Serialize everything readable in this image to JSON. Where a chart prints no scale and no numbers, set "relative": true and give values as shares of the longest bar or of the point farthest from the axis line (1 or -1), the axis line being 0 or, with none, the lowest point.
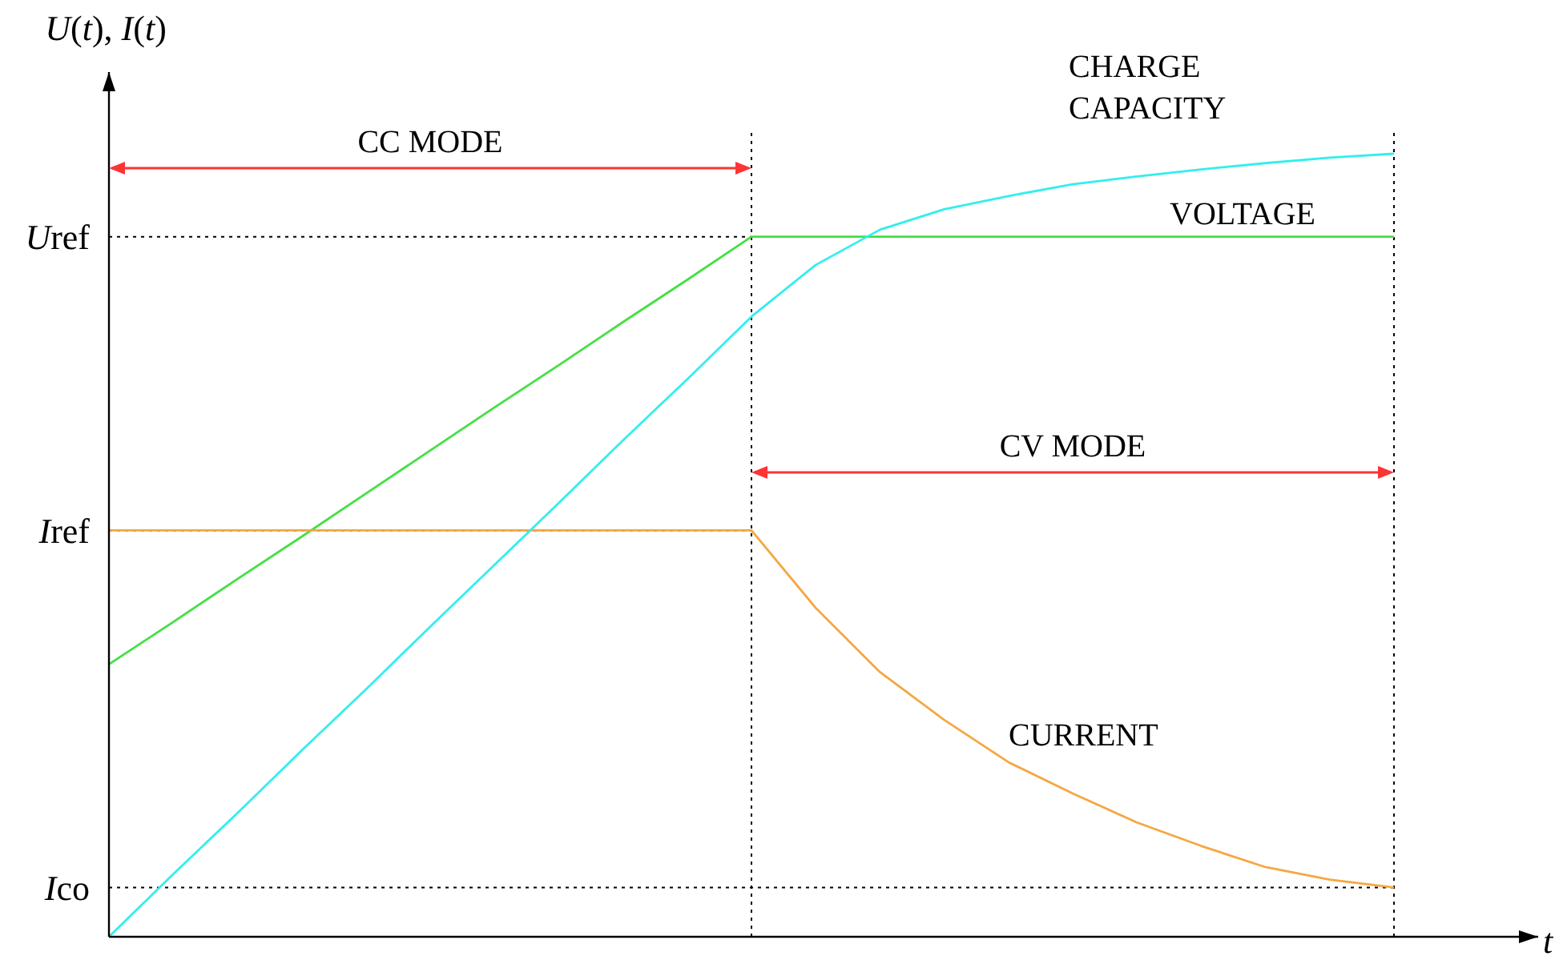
{
  "chart_data": {
    "type": "line",
    "xlabel": "t",
    "ylabel": "U(t), I(t)",
    "relative": true,
    "categories": [
      null,
      null,
      null,
      null,
      null,
      null,
      null,
      null,
      null,
      null,
      null,
      null,
      null,
      null,
      null,
      null,
      null,
      null,
      null,
      null,
      null
    ],
    "grid": false,
    "marker": "none",
    "line_style": "solid",
    "series": [
      {
        "name": "VOLTAGE",
        "color": "#44e044",
        "values": [
          0.348,
          0.402,
          0.457,
          0.511,
          0.566,
          0.621,
          0.676,
          0.73,
          0.785,
          0.839,
          0.894,
          0.894,
          0.894,
          0.894,
          0.894,
          0.894,
          0.894,
          0.894,
          0.894,
          0.894,
          0.894
        ]
      },
      {
        "name": "CURRENT",
        "color": "#f5a742",
        "values": [
          0.519,
          0.519,
          0.519,
          0.519,
          0.519,
          0.519,
          0.519,
          0.519,
          0.519,
          0.519,
          0.519,
          0.42,
          0.338,
          0.277,
          0.223,
          0.183,
          0.146,
          0.116,
          0.089,
          0.073,
          0.063
        ]
      },
      {
        "name": "CHARGE CAPACITY",
        "color": "#33eeee",
        "values": [
          0,
          0.08,
          0.158,
          0.238,
          0.316,
          0.396,
          0.475,
          0.554,
          0.634,
          0.712,
          0.792,
          0.858,
          0.903,
          0.929,
          0.946,
          0.961,
          0.971,
          0.98,
          0.988,
          0.995,
          1
        ]
      }
    ],
    "ref_lines": [
      {
        "axis": "y",
        "value": 0.894,
        "label": "Uref",
        "line_style": "dotted",
        "color": "#000000"
      },
      {
        "axis": "y",
        "value": 0.519,
        "label": "Iref",
        "line_style": "dotted",
        "color": "#000000"
      },
      {
        "axis": "y",
        "value": 0.063,
        "label": "Ico",
        "line_style": "dotted",
        "color": "#000000"
      }
    ],
    "annotations": [
      "CC MODE",
      "CV MODE"
    ]
  }
}
